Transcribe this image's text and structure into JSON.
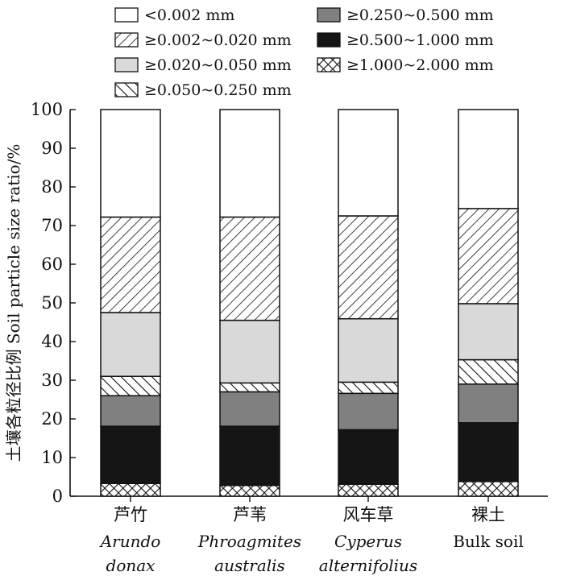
{
  "chart_data": {
    "type": "bar",
    "stacked": true,
    "ylabel": "土壤各粒径比例 Soil particle size ratio/%",
    "ylim": [
      0,
      100
    ],
    "yticks": [
      0,
      10,
      20,
      30,
      40,
      50,
      60,
      70,
      80,
      90,
      100
    ],
    "grid": false,
    "legend_position": "top",
    "categories": [
      {
        "cn": "芦竹",
        "en": [
          "Arundo",
          "donax"
        ],
        "italic": true
      },
      {
        "cn": "芦苇",
        "en": [
          "Phroagmites",
          "australis"
        ],
        "italic": true
      },
      {
        "cn": "风车草",
        "en": [
          "Cyperus",
          "alternifolius"
        ],
        "italic": true
      },
      {
        "cn": "裸土",
        "en": [
          "Bulk soil"
        ],
        "italic": false
      }
    ],
    "series": [
      {
        "name": "≥1.000~2.000 mm",
        "pattern": "crosshatch",
        "values": [
          3.3,
          2.8,
          3.1,
          3.8
        ]
      },
      {
        "name": "≥0.500~1.000 mm",
        "pattern": "black",
        "values": [
          14.8,
          15.3,
          14.1,
          15.2
        ]
      },
      {
        "name": "≥0.250~0.500 mm",
        "pattern": "darkgray",
        "values": [
          7.9,
          8.9,
          9.4,
          10.0
        ]
      },
      {
        "name": "≥0.050~0.250 mm",
        "pattern": "backslash",
        "values": [
          5.0,
          2.3,
          2.9,
          6.3
        ]
      },
      {
        "name": "≥0.020~0.050 mm",
        "pattern": "lightgray",
        "values": [
          16.5,
          16.2,
          16.4,
          14.5
        ]
      },
      {
        "name": "≥0.002~0.020 mm",
        "pattern": "slash",
        "values": [
          24.7,
          26.7,
          26.6,
          24.6
        ]
      },
      {
        "name": "<0.002 mm",
        "pattern": "white",
        "values": [
          27.8,
          27.8,
          27.5,
          25.6
        ]
      }
    ],
    "legend_order": [
      "<0.002 mm",
      "≥0.250~0.500 mm",
      "≥0.002~0.020 mm",
      "≥0.500~1.000 mm",
      "≥0.020~0.050 mm",
      "≥1.000~2.000 mm",
      "≥0.050~0.250 mm"
    ]
  }
}
